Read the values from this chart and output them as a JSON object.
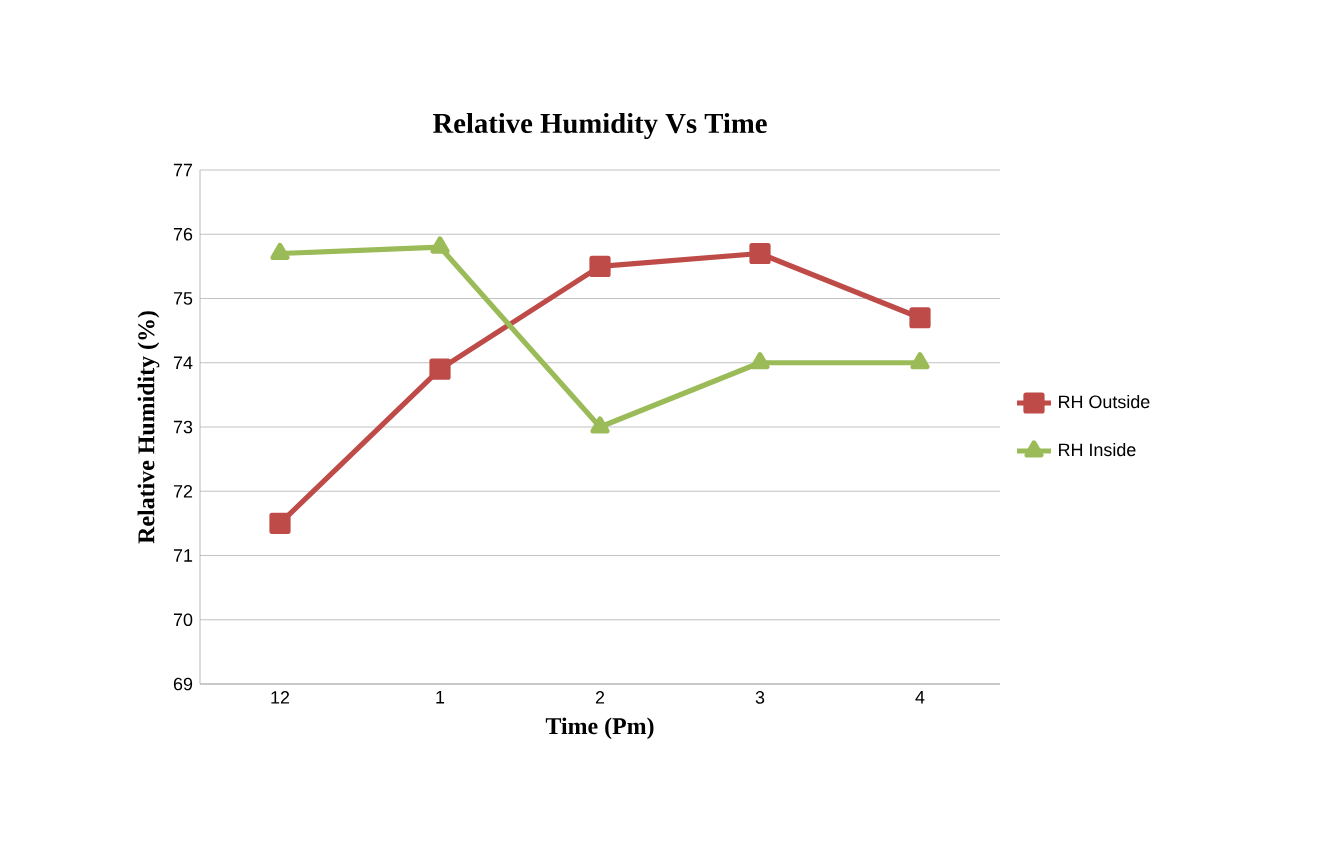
{
  "chart_data": {
    "type": "line",
    "title": "Relative Humidity Vs Time",
    "xlabel": "Time (Pm)",
    "ylabel": "Relative Humidity (%)",
    "categories": [
      "12",
      "1",
      "2",
      "3",
      "4"
    ],
    "ylim": [
      69,
      77
    ],
    "yticks": [
      69,
      70,
      71,
      72,
      73,
      74,
      75,
      76,
      77
    ],
    "grid": "y",
    "legend": "right",
    "line_style": "solid",
    "series": [
      {
        "name": "RH Outside",
        "color": "#be4b48",
        "marker": "square",
        "values": [
          71.5,
          73.9,
          75.5,
          75.7,
          74.7
        ]
      },
      {
        "name": "RH Inside",
        "color": "#9bbb59",
        "marker": "triangle",
        "values": [
          75.7,
          75.8,
          73.0,
          74.0,
          74.0
        ]
      }
    ]
  }
}
